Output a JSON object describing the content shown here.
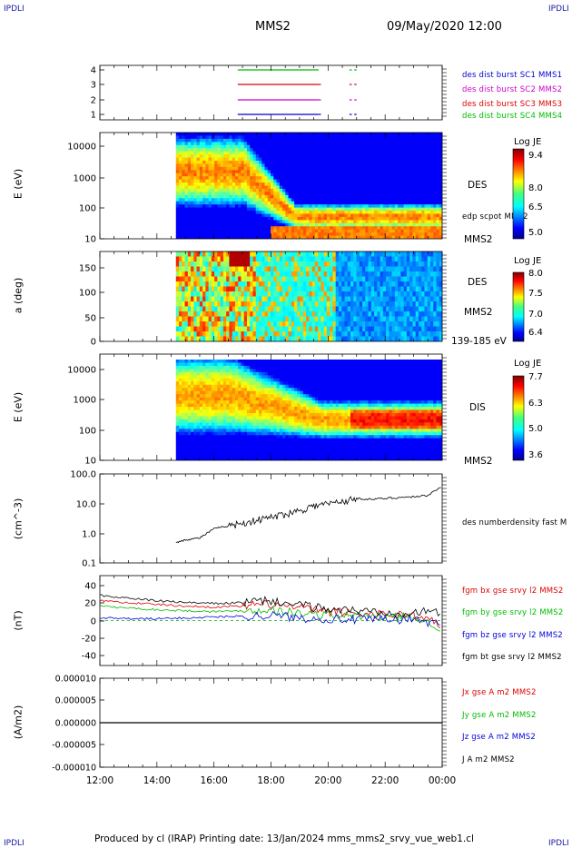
{
  "header": {
    "corner_label": "IPDLI",
    "spacecraft": "MMS2",
    "datetime": "09/May/2020 12:00"
  },
  "time_axis": {
    "ticks": [
      "12:00",
      "14:00",
      "16:00",
      "18:00",
      "20:00",
      "22:00",
      "00:00"
    ]
  },
  "panels": {
    "burst": {
      "ticks": [
        "4",
        "3",
        "2",
        "1"
      ],
      "legend": [
        {
          "text": "des dist burst SC1 MMS1",
          "color": "#0000cc"
        },
        {
          "text": "des dist burst SC2 MMS2",
          "color": "#cc00cc"
        },
        {
          "text": "des dist burst SC3 MMS3",
          "color": "#dd0000"
        },
        {
          "text": "des dist burst SC4 MMS4",
          "color": "#00bb00"
        }
      ]
    },
    "des_energy": {
      "ylabel": "E (eV)",
      "ticks": [
        "10000",
        "1000",
        "100",
        "10"
      ],
      "label_species": "DES",
      "label_extra": "edp scpot MMS2",
      "label_sc": "MMS2",
      "colorbar": {
        "title": "Log JE",
        "ticks": [
          "9.4",
          "8.0",
          "6.5",
          "5.0"
        ]
      }
    },
    "des_pitch": {
      "ylabel": "a (deg)",
      "ticks": [
        "150",
        "100",
        "50",
        "0"
      ],
      "label_species": "DES",
      "label_sc": "MMS2",
      "label_range": "139-185 eV",
      "colorbar": {
        "title": "Log JE",
        "ticks": [
          "8.0",
          "7.5",
          "7.0",
          "6.4"
        ]
      }
    },
    "dis_energy": {
      "ylabel": "E (eV)",
      "ticks": [
        "10000",
        "1000",
        "100",
        "10"
      ],
      "label_species": "DIS",
      "label_sc": "MMS2",
      "colorbar": {
        "title": "Log JE",
        "ticks": [
          "7.7",
          "6.3",
          "5.0",
          "3.6"
        ]
      }
    },
    "density": {
      "ylabel": "(cm^-3)",
      "ticks": [
        "100.0",
        "10.0",
        "1.0",
        "0.1"
      ],
      "label": "des numberdensity fast M"
    },
    "bfield": {
      "ylabel": "(nT)",
      "ticks": [
        "40",
        "20",
        "0",
        "-20",
        "-40"
      ],
      "legend": [
        {
          "text": "fgm bx gse srvy l2 MMS2",
          "color": "#dd0000"
        },
        {
          "text": "fgm by gse srvy l2 MMS2",
          "color": "#00bb00"
        },
        {
          "text": "fgm bz gse srvy l2 MMS2",
          "color": "#0000dd"
        },
        {
          "text": "fgm bt gse srvy l2 MMS2",
          "color": "#000000"
        }
      ]
    },
    "current": {
      "ylabel": "(A/m2)",
      "ticks": [
        "0.000010",
        "0.000005",
        "0.000000",
        "-0.000005",
        "-0.000010"
      ],
      "legend": [
        {
          "text": "Jx gse A m2 MMS2",
          "color": "#dd0000"
        },
        {
          "text": "Jy gse A m2 MMS2",
          "color": "#00bb00"
        },
        {
          "text": "Jz gse A m2 MMS2",
          "color": "#0000dd"
        },
        {
          "text": "J A m2 MMS2",
          "color": "#000000"
        }
      ]
    }
  },
  "footer": {
    "text": "Produced by cl (IRAP)   Printing date: 13/Jan/2024   mms_mms2_srvy_vue_web1.cl"
  },
  "chart_data": [
    {
      "type": "line",
      "title": "burst intervals",
      "ylim": [
        1,
        4
      ],
      "x_range": [
        "12:00",
        "00:00"
      ],
      "series": [
        {
          "name": "des dist burst SC1 MMS1",
          "value": 1,
          "intervals": [
            [
              "16:50",
              "19:40"
            ],
            [
              "19:40",
              "19:45"
            ],
            [
              "20:45",
              "20:50"
            ],
            [
              "20:55",
              "21:00"
            ]
          ]
        },
        {
          "name": "des dist burst SC2 MMS2",
          "value": 2,
          "intervals": [
            [
              "16:50",
              "19:40"
            ],
            [
              "19:40",
              "19:45"
            ],
            [
              "20:45",
              "20:50"
            ],
            [
              "20:55",
              "21:00"
            ]
          ]
        },
        {
          "name": "des dist burst SC3 MMS3",
          "value": 3,
          "intervals": [
            [
              "16:50",
              "19:40"
            ],
            [
              "19:40",
              "19:45"
            ],
            [
              "20:45",
              "20:50"
            ],
            [
              "20:55",
              "21:00"
            ]
          ]
        },
        {
          "name": "des dist burst SC4 MMS4",
          "value": 4,
          "intervals": [
            [
              "16:50",
              "19:40"
            ],
            [
              "20:45",
              "20:50"
            ],
            [
              "20:55",
              "21:00"
            ]
          ]
        }
      ]
    },
    {
      "type": "heatmap",
      "ylabel": "E (eV)",
      "ylim": [
        10,
        30000
      ],
      "yscale": "log",
      "data_start": "14:40",
      "colorbar_range": [
        5.0,
        9.4
      ]
    },
    {
      "type": "heatmap",
      "ylabel": "a (deg)",
      "ylim": [
        0,
        180
      ],
      "data_start": "14:40",
      "colorbar_range": [
        6.4,
        8.0
      ]
    },
    {
      "type": "heatmap",
      "ylabel": "E (eV)",
      "ylim": [
        10,
        30000
      ],
      "yscale": "log",
      "data_start": "14:40",
      "colorbar_range": [
        3.6,
        7.7
      ]
    },
    {
      "type": "line",
      "ylabel": "(cm^-3)",
      "yscale": "log",
      "ylim": [
        0.1,
        100
      ],
      "series": [
        {
          "name": "des numberdensity fast M",
          "x": [
            "14:40",
            "15:00",
            "15:30",
            "16:00",
            "16:30",
            "17:00",
            "17:30",
            "18:00",
            "18:30",
            "19:00",
            "19:30",
            "20:00",
            "20:30",
            "21:00",
            "21:30",
            "22:00",
            "22:30",
            "23:00",
            "23:30",
            "00:00"
          ],
          "y": [
            0.5,
            0.6,
            0.7,
            1.4,
            1.8,
            2.2,
            2.8,
            3.5,
            4.5,
            6.0,
            8.5,
            10,
            12,
            15,
            14,
            15,
            16,
            17,
            19,
            40
          ]
        }
      ]
    },
    {
      "type": "line",
      "ylabel": "(nT)",
      "ylim": [
        -50,
        50
      ],
      "x": [
        "12:00",
        "13:00",
        "14:00",
        "15:00",
        "16:00",
        "17:00",
        "18:00",
        "19:00",
        "20:00",
        "21:00",
        "22:00",
        "23:00",
        "00:00"
      ],
      "series": [
        {
          "name": "fgm bx gse srvy l2 MMS2",
          "values": [
            22,
            20,
            18,
            16,
            15,
            16,
            18,
            14,
            10,
            8,
            7,
            6,
            -5
          ]
        },
        {
          "name": "fgm by gse srvy l2 MMS2",
          "values": [
            16,
            14,
            12,
            11,
            10,
            11,
            12,
            8,
            6,
            5,
            4,
            3,
            -8
          ]
        },
        {
          "name": "fgm bz gse srvy l2 MMS2",
          "values": [
            3,
            2,
            2,
            3,
            4,
            5,
            6,
            3,
            2,
            1,
            1,
            1,
            -4
          ]
        },
        {
          "name": "fgm bt gse srvy l2 MMS2",
          "values": [
            28,
            25,
            22,
            20,
            19,
            20,
            22,
            17,
            13,
            11,
            10,
            9,
            10
          ]
        }
      ]
    },
    {
      "type": "line",
      "ylabel": "(A/m2)",
      "ylim": [
        -1e-05,
        1e-05
      ],
      "series": [
        {
          "name": "J A m2 MMS2",
          "x": [
            "12:00",
            "00:00"
          ],
          "y": [
            0,
            0
          ]
        }
      ]
    }
  ]
}
